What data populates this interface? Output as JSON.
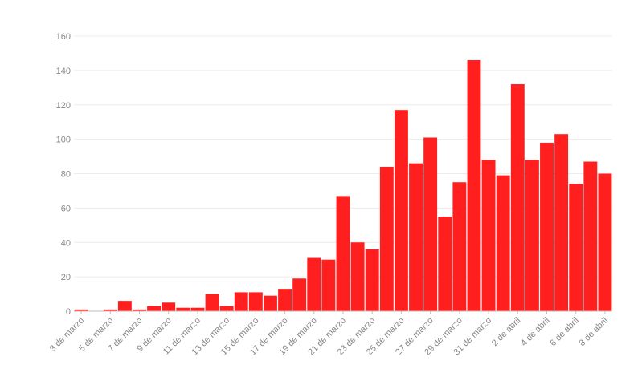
{
  "chart_data": {
    "type": "bar",
    "categories": [
      "3 de marzo",
      "4 de marzo",
      "5 de marzo",
      "6 de marzo",
      "7 de marzo",
      "8 de marzo",
      "9 de marzo",
      "10 de marzo",
      "11 de marzo",
      "12 de marzo",
      "13 de marzo",
      "14 de marzo",
      "15 de marzo",
      "16 de marzo",
      "17 de marzo",
      "18 de marzo",
      "19 de marzo",
      "20 de marzo",
      "21 de marzo",
      "22 de marzo",
      "23 de marzo",
      "24 de marzo",
      "25 de marzo",
      "26 de marzo",
      "27 de marzo",
      "28 de marzo",
      "29 de marzo",
      "30 de marzo",
      "31 de marzo",
      "1 de abril",
      "2 de abril",
      "3 de abril",
      "4 de abril",
      "5 de abril",
      "6 de abril",
      "7 de abril",
      "8 de abril"
    ],
    "x_tick_labels": [
      "3 de marzo",
      "5 de marzo",
      "7 de marzo",
      "9 de marzo",
      "11 de marzo",
      "13 de marzo",
      "15 de marzo",
      "17 de marzo",
      "19 de marzo",
      "21 de marzo",
      "23 de marzo",
      "25 de marzo",
      "27 de marzo",
      "29 de marzo",
      "31 de marzo",
      "2 de abril",
      "4 de abril",
      "6 de abril",
      "8 de abril"
    ],
    "values": [
      1,
      0,
      1,
      6,
      1,
      3,
      5,
      2,
      2,
      10,
      3,
      11,
      11,
      9,
      13,
      19,
      31,
      30,
      67,
      40,
      36,
      84,
      117,
      86,
      101,
      55,
      75,
      146,
      88,
      79,
      132,
      88,
      98,
      103,
      74,
      87,
      80
    ],
    "y_ticks": [
      "0",
      "20",
      "40",
      "60",
      "80",
      "100",
      "120",
      "140",
      "160"
    ],
    "ylim": [
      0,
      160
    ],
    "grid": true,
    "bar_color": "#ff1f1f",
    "title": "",
    "xlabel": "",
    "ylabel": ""
  }
}
